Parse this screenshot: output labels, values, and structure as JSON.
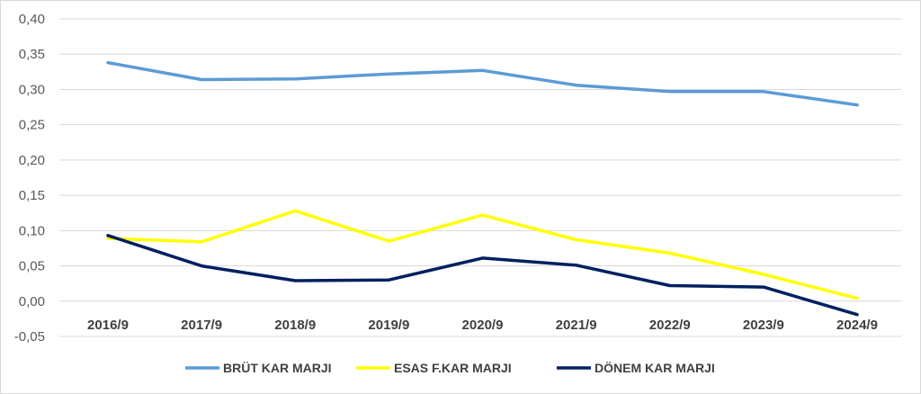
{
  "chart_data": {
    "type": "line",
    "title": "",
    "xlabel": "",
    "ylabel": "",
    "categories": [
      "2016/9",
      "2017/9",
      "2018/9",
      "2019/9",
      "2020/9",
      "2021/9",
      "2022/9",
      "2023/9",
      "2024/9"
    ],
    "y_ticks": [
      "0,40",
      "0,35",
      "0,30",
      "0,25",
      "0,20",
      "0,15",
      "0,10",
      "0,05",
      "0,00",
      "-0,05"
    ],
    "ylim": [
      -0.05,
      0.4
    ],
    "grid": true,
    "legend_position": "bottom",
    "series": [
      {
        "name": "BRÜT KAR MARJI",
        "color": "#5b9bd5",
        "values": [
          0.338,
          0.314,
          0.315,
          0.322,
          0.327,
          0.306,
          0.297,
          0.297,
          0.278
        ]
      },
      {
        "name": "ESAS F.KAR MARJI",
        "color": "#ffff00",
        "values": [
          0.089,
          0.084,
          0.128,
          0.085,
          0.122,
          0.087,
          0.068,
          0.038,
          0.004
        ]
      },
      {
        "name": "DÖNEM KAR MARJI",
        "color": "#002060",
        "values": [
          0.093,
          0.05,
          0.029,
          0.03,
          0.061,
          0.051,
          0.022,
          0.02,
          -0.019
        ]
      }
    ]
  }
}
